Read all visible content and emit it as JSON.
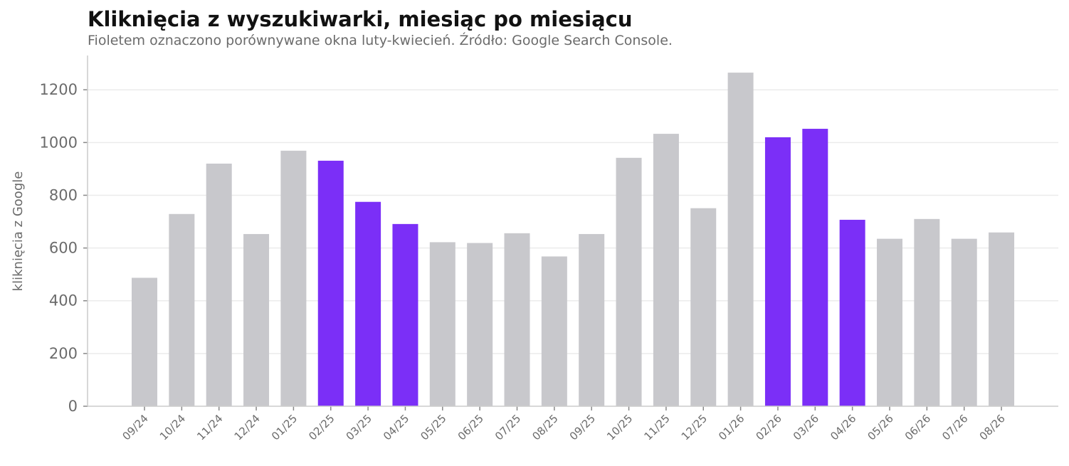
{
  "chart_data": {
    "type": "bar",
    "title": "Kliknięcia z wyszukiwarki, miesiąc po miesiącu",
    "subtitle": "Fioletem oznaczono porównywane okna luty-kwiecień. Źródło: Google Search Console.",
    "xlabel": "",
    "ylabel": "kliknięcia z Google",
    "categories": [
      "09/24",
      "10/24",
      "11/24",
      "12/24",
      "01/25",
      "02/25",
      "03/25",
      "04/25",
      "05/25",
      "06/25",
      "07/25",
      "08/25",
      "09/25",
      "10/25",
      "11/25",
      "12/25",
      "01/26",
      "02/26",
      "03/26",
      "04/26",
      "05/26",
      "06/26",
      "07/26",
      "08/26"
    ],
    "values": [
      487,
      729,
      920,
      653,
      969,
      931,
      775,
      691,
      622,
      619,
      656,
      568,
      653,
      942,
      1033,
      751,
      1265,
      1020,
      1052,
      707,
      635,
      710,
      635,
      659
    ],
    "highlighted": [
      "02/25",
      "03/25",
      "04/25",
      "02/26",
      "03/26",
      "04/26"
    ],
    "ylim": [
      0,
      1330
    ],
    "yticks": [
      0,
      200,
      400,
      600,
      800,
      1000,
      1200
    ],
    "grid": "horizontal",
    "colors": {
      "default": "#c8c8cc",
      "highlight": "#7b2ff7",
      "grid": "#ebebeb",
      "axis": "#cccccc"
    }
  }
}
